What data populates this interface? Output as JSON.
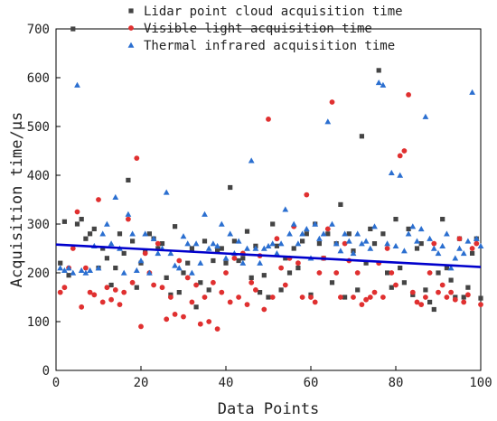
{
  "chart_data": {
    "type": "scatter",
    "xlabel": "Data Points",
    "ylabel": "Acquisition time/μs",
    "xlim": [
      0,
      100
    ],
    "ylim": [
      0,
      700
    ],
    "xticks": [
      0,
      20,
      40,
      60,
      80,
      100
    ],
    "yticks": [
      0,
      100,
      200,
      300,
      400,
      500,
      600,
      700
    ],
    "legend_position": "top",
    "trendline": {
      "x": [
        0,
        100
      ],
      "y": [
        258,
        212
      ],
      "color": "#0000cc"
    },
    "series": [
      {
        "name": "Lidar point cloud acquisition time",
        "marker": "square",
        "color": "#444444",
        "x": [
          1,
          2,
          3,
          4,
          5,
          6,
          7,
          8,
          9,
          10,
          11,
          12,
          13,
          14,
          15,
          16,
          17,
          18,
          19,
          20,
          21,
          22,
          23,
          24,
          25,
          26,
          27,
          28,
          29,
          30,
          31,
          32,
          33,
          34,
          35,
          36,
          37,
          38,
          39,
          40,
          41,
          42,
          43,
          44,
          45,
          46,
          47,
          48,
          49,
          50,
          51,
          52,
          53,
          54,
          55,
          56,
          57,
          58,
          59,
          60,
          61,
          62,
          63,
          64,
          65,
          66,
          67,
          68,
          69,
          70,
          71,
          72,
          73,
          74,
          75,
          76,
          77,
          78,
          79,
          80,
          81,
          82,
          83,
          84,
          85,
          86,
          87,
          88,
          89,
          90,
          91,
          92,
          93,
          94,
          95,
          96,
          97,
          98,
          99,
          100
        ],
        "y": [
          220,
          305,
          195,
          700,
          300,
          310,
          270,
          280,
          290,
          210,
          250,
          230,
          175,
          210,
          280,
          240,
          390,
          265,
          170,
          220,
          245,
          280,
          270,
          250,
          260,
          190,
          155,
          295,
          160,
          200,
          220,
          250,
          130,
          180,
          265,
          165,
          225,
          245,
          250,
          220,
          375,
          265,
          225,
          230,
          285,
          190,
          255,
          160,
          195,
          150,
          300,
          255,
          165,
          230,
          200,
          250,
          210,
          265,
          280,
          155,
          300,
          260,
          230,
          280,
          180,
          260,
          340,
          150,
          280,
          245,
          165,
          480,
          220,
          290,
          260,
          615,
          280,
          200,
          170,
          310,
          210,
          180,
          290,
          155,
          250,
          260,
          165,
          140,
          125,
          200,
          310,
          210,
          185,
          150,
          270,
          150,
          170,
          240,
          270,
          148
        ]
      },
      {
        "name": "Visible light acquisition time",
        "marker": "circle",
        "color": "#e03030",
        "x": [
          1,
          2,
          3,
          4,
          5,
          6,
          7,
          8,
          9,
          10,
          11,
          12,
          13,
          14,
          15,
          16,
          17,
          18,
          19,
          20,
          21,
          22,
          23,
          24,
          25,
          26,
          27,
          28,
          29,
          30,
          31,
          32,
          33,
          34,
          35,
          36,
          37,
          38,
          39,
          40,
          41,
          42,
          43,
          44,
          45,
          46,
          47,
          48,
          49,
          50,
          51,
          52,
          53,
          54,
          55,
          56,
          57,
          58,
          59,
          60,
          61,
          62,
          63,
          64,
          65,
          66,
          67,
          68,
          69,
          70,
          71,
          72,
          73,
          74,
          75,
          76,
          77,
          78,
          79,
          80,
          81,
          82,
          83,
          84,
          85,
          86,
          87,
          88,
          89,
          90,
          91,
          92,
          93,
          94,
          95,
          96,
          97,
          98,
          99,
          100
        ],
        "y": [
          160,
          170,
          210,
          250,
          325,
          130,
          210,
          160,
          155,
          350,
          140,
          170,
          145,
          165,
          135,
          160,
          310,
          180,
          435,
          90,
          240,
          200,
          175,
          260,
          170,
          105,
          150,
          115,
          225,
          110,
          190,
          140,
          175,
          95,
          150,
          100,
          180,
          85,
          160,
          200,
          140,
          230,
          150,
          240,
          135,
          180,
          165,
          235,
          125,
          515,
          150,
          270,
          210,
          175,
          230,
          295,
          220,
          150,
          360,
          150,
          140,
          200,
          230,
          290,
          550,
          200,
          150,
          260,
          225,
          150,
          200,
          135,
          145,
          150,
          160,
          220,
          150,
          250,
          200,
          175,
          440,
          450,
          565,
          160,
          140,
          135,
          150,
          200,
          260,
          160,
          175,
          150,
          160,
          145,
          270,
          140,
          155,
          250,
          260,
          135
        ]
      },
      {
        "name": "Thermal infrared acquisition time",
        "marker": "triangle",
        "color": "#2b6fd0",
        "x": [
          1,
          2,
          3,
          4,
          5,
          6,
          7,
          8,
          9,
          10,
          11,
          12,
          13,
          14,
          15,
          16,
          17,
          18,
          19,
          20,
          21,
          22,
          23,
          24,
          25,
          26,
          27,
          28,
          29,
          30,
          31,
          32,
          33,
          34,
          35,
          36,
          37,
          38,
          39,
          40,
          41,
          42,
          43,
          44,
          45,
          46,
          47,
          48,
          49,
          50,
          51,
          52,
          53,
          54,
          55,
          56,
          57,
          58,
          59,
          60,
          61,
          62,
          63,
          64,
          65,
          66,
          67,
          68,
          69,
          70,
          71,
          72,
          73,
          74,
          75,
          76,
          77,
          78,
          79,
          80,
          81,
          82,
          83,
          84,
          85,
          86,
          87,
          88,
          89,
          90,
          91,
          92,
          93,
          94,
          95,
          96,
          97,
          98,
          99,
          100
        ],
        "y": [
          210,
          205,
          210,
          200,
          585,
          205,
          200,
          205,
          255,
          210,
          280,
          300,
          260,
          355,
          250,
          200,
          320,
          280,
          205,
          225,
          280,
          200,
          270,
          240,
          250,
          365,
          240,
          215,
          210,
          275,
          260,
          200,
          260,
          220,
          320,
          250,
          260,
          255,
          300,
          230,
          280,
          240,
          265,
          220,
          250,
          430,
          250,
          220,
          250,
          255,
          260,
          240,
          260,
          330,
          280,
          300,
          260,
          280,
          290,
          230,
          300,
          270,
          280,
          510,
          300,
          260,
          245,
          280,
          265,
          240,
          280,
          260,
          265,
          250,
          295,
          590,
          585,
          260,
          405,
          255,
          400,
          245,
          280,
          295,
          265,
          290,
          520,
          270,
          250,
          240,
          255,
          280,
          210,
          230,
          250,
          240,
          265,
          570,
          270,
          255
        ]
      }
    ]
  }
}
